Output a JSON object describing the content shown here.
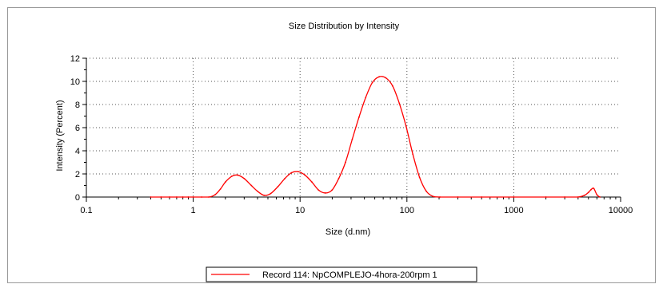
{
  "chart_data": {
    "type": "line",
    "title": "Size Distribution by Intensity",
    "xlabel": "Size (d.nm)",
    "ylabel": "Intensity (Percent)",
    "xscale": "log",
    "xlim": [
      0.1,
      10000
    ],
    "ylim": [
      0,
      12
    ],
    "x_ticks": [
      "0.1",
      "1",
      "10",
      "100",
      "1000",
      "10000"
    ],
    "y_ticks": [
      "0",
      "2",
      "4",
      "6",
      "8",
      "10",
      "12"
    ],
    "grid": "dotted",
    "legend_position": "bottom",
    "series": [
      {
        "name": "Record 114: NpCOMPLEJO-4hora-200rpm 1",
        "color": "#ff0000",
        "x": [
          0.4,
          0.5,
          0.6,
          0.7,
          0.8,
          0.9,
          1.0,
          1.2,
          1.4,
          1.6,
          1.8,
          2.0,
          2.3,
          2.6,
          3.0,
          3.5,
          4.0,
          4.6,
          5.3,
          6.2,
          7.2,
          8.3,
          9.6,
          11.1,
          12.9,
          14.9,
          17.2,
          19.9,
          23.0,
          26.6,
          30.8,
          35.6,
          41.1,
          47.5,
          55.0,
          63.5,
          73.5,
          84.9,
          98.3,
          113.6,
          131.4,
          152.0,
          175.9,
          203.6,
          300,
          500,
          1000,
          2000,
          3000,
          4000,
          4600,
          5000,
          5300,
          5600,
          6000,
          6400
        ],
        "y": [
          0,
          0,
          0,
          0,
          0,
          0,
          0,
          0,
          0,
          0.2,
          0.7,
          1.3,
          1.8,
          1.9,
          1.6,
          1.0,
          0.5,
          0.15,
          0.3,
          0.9,
          1.6,
          2.1,
          2.2,
          1.9,
          1.3,
          0.6,
          0.35,
          0.6,
          1.6,
          3.0,
          5.0,
          6.9,
          8.6,
          9.9,
          10.4,
          10.3,
          9.6,
          8.1,
          6.1,
          3.7,
          1.7,
          0.5,
          0.05,
          0,
          0,
          0,
          0,
          0,
          0,
          0,
          0.15,
          0.4,
          0.65,
          0.75,
          0.2,
          0
        ]
      }
    ]
  }
}
